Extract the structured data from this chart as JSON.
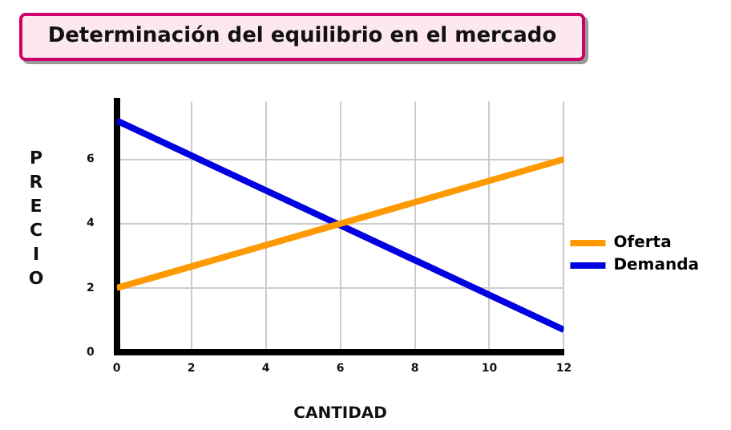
{
  "chart_data": {
    "type": "line",
    "title": "Determinación del equilibrio en el mercado",
    "xlabel": "CANTIDAD",
    "ylabel": "PRECIO",
    "x": [
      0,
      12
    ],
    "series": [
      {
        "name": "Oferta",
        "color": "#ff9900",
        "values": [
          2,
          6
        ]
      },
      {
        "name": "Demanda",
        "color": "#0000e0",
        "values": [
          7.2,
          0.7
        ]
      }
    ],
    "xlim": [
      0,
      12
    ],
    "xticks": [
      0,
      2,
      4,
      6,
      8,
      10,
      12
    ],
    "ylim": [
      0,
      7.8
    ],
    "yticks": [
      0,
      2,
      4,
      6
    ],
    "grid": true,
    "legend": "right",
    "marker": "none",
    "line_style": "solid"
  }
}
